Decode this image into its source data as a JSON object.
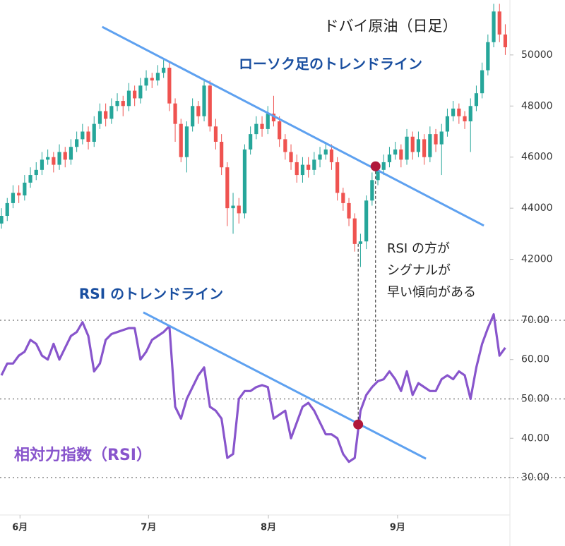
{
  "chart_data": [
    {
      "type": "candlestick",
      "title": "ドバイ原油（日足）",
      "xlim": [
        -0.25,
        87.8
      ],
      "xticks": [
        {
          "value": 3.2,
          "label": "6月"
        },
        {
          "value": 25.4,
          "label": "7月"
        },
        {
          "value": 46.1,
          "label": "8月"
        },
        {
          "value": 68.4,
          "label": "9月"
        }
      ],
      "ylim": [
        40000,
        52150
      ],
      "yticks": [
        42000,
        44000,
        46000,
        48000,
        50000
      ],
      "up_color": "#26a69a",
      "down_color": "#ef5350",
      "open": [
        43400,
        43700,
        44200,
        44600,
        44500,
        45000,
        45300,
        45500,
        45900,
        46000,
        45700,
        46200,
        45900,
        46400,
        46700,
        47000,
        46600,
        47300,
        47800,
        47500,
        48000,
        48200,
        48000,
        48600,
        48300,
        48800,
        49100,
        49000,
        49300,
        49500,
        48100,
        47300,
        46000,
        47200,
        48000,
        47600,
        48800,
        47200,
        46600,
        45600,
        44000,
        44100,
        43800,
        46300,
        46900,
        47300,
        47100,
        47700,
        47400,
        46700,
        46200,
        45800,
        45300,
        45700,
        45500,
        45900,
        46100,
        46300,
        45800,
        44600,
        44200,
        43600,
        42600,
        42700,
        44300,
        45100,
        45500,
        45800,
        46100,
        46300,
        45900,
        46800,
        46200,
        46700,
        46000,
        46900,
        46500,
        47000,
        47600,
        47900,
        47600,
        47400,
        48000,
        48500,
        49400,
        50500,
        51700,
        50800
      ],
      "high": [
        44000,
        44400,
        44900,
        44900,
        45300,
        45600,
        45800,
        46200,
        46300,
        46200,
        46500,
        46400,
        46700,
        47000,
        47300,
        47200,
        47600,
        48100,
        48100,
        48300,
        48500,
        48400,
        48900,
        48800,
        49100,
        49400,
        49300,
        49600,
        49800,
        49700,
        48300,
        47500,
        47400,
        48300,
        48200,
        49000,
        49000,
        47500,
        46900,
        45800,
        44600,
        44400,
        46500,
        47200,
        47600,
        47600,
        48000,
        48400,
        47600,
        46900,
        46500,
        46100,
        46000,
        46000,
        46200,
        46400,
        46600,
        46500,
        46000,
        44800,
        44400,
        43800,
        43000,
        44500,
        45400,
        45800,
        46100,
        46400,
        46600,
        46500,
        47100,
        47000,
        47000,
        46900,
        47200,
        47100,
        47300,
        47900,
        48200,
        48100,
        47800,
        48300,
        48800,
        49700,
        50800,
        52000,
        52000,
        51200
      ],
      "low": [
        43200,
        43500,
        44000,
        44200,
        44300,
        44800,
        45100,
        45300,
        45700,
        45400,
        45500,
        45600,
        45700,
        46200,
        46500,
        46300,
        46400,
        47100,
        47200,
        47300,
        47800,
        47600,
        47800,
        48000,
        48100,
        48600,
        48700,
        48800,
        49100,
        47800,
        46600,
        45800,
        45400,
        47000,
        47300,
        47400,
        47000,
        46300,
        45300,
        43300,
        43000,
        43400,
        43600,
        46100,
        46700,
        46800,
        46900,
        47200,
        46400,
        45900,
        45500,
        45000,
        45000,
        45200,
        45300,
        45600,
        45900,
        45500,
        44300,
        43900,
        43300,
        42300,
        41700,
        42400,
        44100,
        44900,
        45300,
        45600,
        45900,
        45600,
        45700,
        45900,
        46000,
        45700,
        45800,
        46200,
        45300,
        46800,
        47400,
        47300,
        47100,
        46200,
        47800,
        48300,
        49200,
        50300,
        50500,
        50000
      ],
      "close": [
        43700,
        44200,
        44600,
        44500,
        45000,
        45300,
        45500,
        45900,
        46000,
        45700,
        46200,
        45900,
        46400,
        46700,
        47000,
        46600,
        47300,
        47800,
        47500,
        48000,
        48200,
        48000,
        48600,
        48300,
        48800,
        49100,
        49000,
        49300,
        49500,
        48100,
        47300,
        46000,
        47200,
        48000,
        47600,
        48800,
        47200,
        46600,
        45600,
        44000,
        44100,
        43800,
        46300,
        46900,
        47300,
        47100,
        47700,
        47400,
        46700,
        46200,
        45800,
        45300,
        45700,
        45500,
        45900,
        46100,
        46300,
        45800,
        44600,
        44200,
        43600,
        42600,
        42700,
        44300,
        45100,
        45500,
        45800,
        46100,
        46300,
        45900,
        46800,
        46200,
        46700,
        46000,
        46900,
        46500,
        47000,
        47600,
        47900,
        47600,
        47400,
        48000,
        48500,
        49400,
        50500,
        51700,
        50800,
        50300
      ],
      "trendline": {
        "label": "ローソク足のトレンドライン",
        "color": "#5ea1f0",
        "x": [
          17.4,
          83.3
        ],
        "y": [
          51100,
          43320
        ]
      },
      "marker": {
        "x": 64.6,
        "y": 45640,
        "color": "#b0173a"
      },
      "annotation": [
        "RSI の方が",
        "シグナルが",
        "早い傾向がある"
      ]
    },
    {
      "type": "line",
      "title": "相対力指数（RSI）",
      "color": "#8855cc",
      "xlim": [
        -0.25,
        87.8
      ],
      "ylim": [
        20.5,
        72.5
      ],
      "yticks": [
        {
          "value": 30,
          "label": "30.00"
        },
        {
          "value": 40,
          "label": "40.00"
        },
        {
          "value": 50,
          "label": "50.00"
        },
        {
          "value": 60,
          "label": "60.00"
        },
        {
          "value": 70,
          "label": "70.00"
        }
      ],
      "hlines": [
        30,
        50,
        70
      ],
      "values": [
        56,
        59,
        59,
        61,
        62,
        65,
        64,
        61,
        60,
        64,
        60,
        63,
        66,
        67,
        69.5,
        66,
        57,
        59,
        65,
        66.5,
        67,
        67.5,
        68,
        68,
        60,
        62,
        65,
        66,
        67,
        68.5,
        48,
        45,
        50,
        53,
        56,
        58,
        48,
        47,
        45,
        35,
        36,
        50,
        52,
        52,
        53,
        53.5,
        53,
        45,
        46,
        47,
        40,
        44,
        48,
        49,
        47,
        44,
        41,
        41,
        40,
        36,
        34,
        35,
        47,
        51,
        53,
        54.5,
        55,
        57,
        55,
        52,
        57,
        51,
        54,
        53,
        52,
        52,
        55,
        56,
        55,
        57,
        56,
        50,
        58,
        64,
        68,
        71.5,
        61,
        63
      ],
      "trendline": {
        "label": "RSI のトレンドライン",
        "color": "#5ea1f0",
        "x": [
          24.5,
          73.3
        ],
        "y": [
          72.0,
          34.8
        ]
      },
      "marker": {
        "x": 61.6,
        "y": 43.5,
        "color": "#b0173a"
      }
    }
  ]
}
